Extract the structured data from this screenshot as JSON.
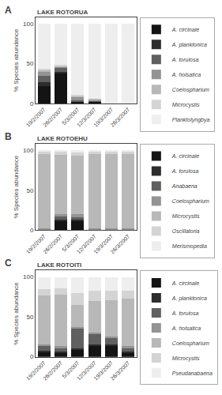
{
  "chart_data": [
    {
      "type": "bar",
      "title": "LAKE ROTORUA",
      "annotations": [
        "A"
      ],
      "ylabel": "% Species abundance",
      "categories": [
        "19/2/2007",
        "26/2/2007",
        "5/3/2007",
        "12/3/2007",
        "19/3/2007",
        "26/3/2007"
      ],
      "series": [
        {
          "name": "A. circinale",
          "color": "#141414",
          "values": [
            22,
            38,
            2,
            3,
            0,
            0
          ]
        },
        {
          "name": "A. planktonica",
          "color": "#2d2d2d",
          "values": [
            5,
            2,
            0,
            0,
            0,
            0
          ]
        },
        {
          "name": "A. torulosa",
          "color": "#606060",
          "values": [
            8,
            4,
            2,
            1,
            0,
            0
          ]
        },
        {
          "name": "A. holsatica",
          "color": "#949494",
          "values": [
            5,
            2,
            4,
            1,
            0,
            0
          ]
        },
        {
          "name": "Coelospharium",
          "color": "#b8b8b8",
          "values": [
            2,
            1,
            2,
            1,
            0,
            0
          ]
        },
        {
          "name": "Microcystis",
          "color": "#d4d4d4",
          "values": [
            1,
            1,
            1,
            0,
            0,
            0
          ]
        },
        {
          "name": "Planktolyngbya",
          "color": "#eeeeee",
          "values": [
            57,
            52,
            89,
            94,
            100,
            100
          ]
        }
      ],
      "ylim": [
        0,
        108
      ],
      "yticks": [
        0,
        50,
        100
      ],
      "grid": false,
      "stacked": true,
      "legend": "right"
    },
    {
      "type": "bar",
      "title": "LAKE ROTOEHU",
      "annotations": [
        "B"
      ],
      "ylabel": "% Species abundance",
      "categories": [
        "19/2/2007",
        "26/2/2007",
        "5/3/2007",
        "12/3/2007",
        "19/3/2007",
        "26/3/2007"
      ],
      "series": [
        {
          "name": "A. circinale",
          "color": "#141414",
          "values": [
            1,
            11,
            11,
            1,
            1,
            1
          ]
        },
        {
          "name": "A. torulosa",
          "color": "#2d2d2d",
          "values": [
            0,
            2,
            2,
            0,
            0,
            0
          ]
        },
        {
          "name": "Anabaena",
          "color": "#606060",
          "values": [
            0,
            4,
            3,
            0,
            0,
            0
          ]
        },
        {
          "name": "Coelospharium",
          "color": "#949494",
          "values": [
            1,
            3,
            4,
            1,
            1,
            1
          ]
        },
        {
          "name": "Microcystis",
          "color": "#b8b8b8",
          "values": [
            93,
            74,
            73,
            93,
            93,
            93
          ]
        },
        {
          "name": "Oscillatoria",
          "color": "#d4d4d4",
          "values": [
            3,
            4,
            4,
            3,
            3,
            3
          ]
        },
        {
          "name": "Merismopedia",
          "color": "#eeeeee",
          "values": [
            2,
            2,
            3,
            2,
            2,
            2
          ]
        }
      ],
      "ylim": [
        0,
        108
      ],
      "yticks": [
        0,
        50,
        100
      ],
      "grid": false,
      "stacked": true,
      "legend": "right"
    },
    {
      "type": "bar",
      "title": "LAKE ROTOITI",
      "annotations": [
        "C"
      ],
      "ylabel": "% Species abundance",
      "categories": [
        "19/2/2007",
        "26/2/2007",
        "5/3/2007",
        "12/3/2007",
        "19/3/2007",
        "26/3/2007"
      ],
      "series": [
        {
          "name": "A. circinale",
          "color": "#141414",
          "values": [
            6,
            5,
            9,
            13,
            13,
            5
          ]
        },
        {
          "name": "A. planktonica",
          "color": "#2d2d2d",
          "values": [
            2,
            2,
            2,
            2,
            2,
            2
          ]
        },
        {
          "name": "A. torulosa",
          "color": "#606060",
          "values": [
            5,
            4,
            24,
            13,
            8,
            4
          ]
        },
        {
          "name": "A. holsatica",
          "color": "#949494",
          "values": [
            2,
            2,
            2,
            2,
            2,
            2
          ]
        },
        {
          "name": "Coelospharium",
          "color": "#b8b8b8",
          "values": [
            62,
            65,
            28,
            40,
            46,
            60
          ]
        },
        {
          "name": "Microcystis",
          "color": "#d4d4d4",
          "values": [
            8,
            8,
            15,
            13,
            12,
            10
          ]
        },
        {
          "name": "Pseudanabaena",
          "color": "#eeeeee",
          "values": [
            15,
            14,
            20,
            17,
            17,
            17
          ]
        }
      ],
      "ylim": [
        0,
        108
      ],
      "yticks": [
        0,
        50,
        100
      ],
      "grid": false,
      "stacked": true,
      "legend": "right"
    }
  ]
}
